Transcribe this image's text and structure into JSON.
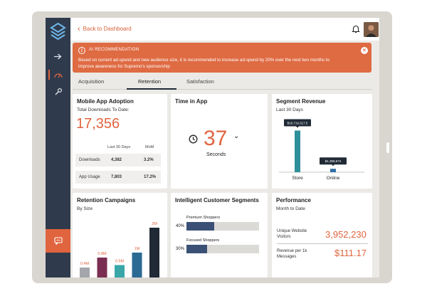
{
  "header": {
    "back_label": "Back to Dashboard",
    "back_chevron": "‹"
  },
  "banner": {
    "title": "AI RECOMMENDATION",
    "text": "Based on current ad-spend and new audience size, it is recommended to increase ad-spend by 20% over the next two months to improve awareness for Supremo's sponsorship",
    "info_glyph": "i",
    "close_glyph": "×"
  },
  "tabs": [
    {
      "label": "Acquisition",
      "active": false
    },
    {
      "label": "Retention",
      "active": true
    },
    {
      "label": "Satisfaction",
      "active": false
    }
  ],
  "adoption": {
    "title": "Mobile App Adoption",
    "subtitle": "Total Downloads To Date:",
    "total": "17,356",
    "columns": [
      "Last 30 Days",
      "MoM"
    ],
    "rows": [
      {
        "label": "Downloads",
        "last30": "4,382",
        "mom": "3.2%"
      },
      {
        "label": "App Usage",
        "last30": "7,803",
        "mom": "17.2%"
      }
    ]
  },
  "time_in_app": {
    "title": "Time in App",
    "value": "37",
    "unit": "Seconds",
    "chevron": "⌄"
  },
  "segment_revenue": {
    "title": "Segment Revenue",
    "subtitle": "Last 30 Days"
  },
  "retention": {
    "title": "Retention Campaigns",
    "subtitle": "By Size"
  },
  "segments": {
    "title": "Intelligent Customer Segments",
    "items": [
      {
        "label": "Premium Shoppers",
        "pct_label": "40%",
        "fill": 0.4
      },
      {
        "label": "Focused Shoppers",
        "pct_label": "30%",
        "fill": 0.3
      }
    ]
  },
  "performance": {
    "title": "Performance",
    "subtitle": "Month to Date",
    "metrics": [
      {
        "label_line1": "Unique Website",
        "label_line2": "Visitors",
        "value": "3,952,230"
      },
      {
        "label_line1": "Revenue per 1k",
        "label_line2": "Messages",
        "value": "$111.17"
      }
    ]
  },
  "colors": {
    "accent": "#e0643e",
    "navy": "#1f2a36",
    "teal": "#2f8f9a",
    "sidebar": "#2f3b4c"
  },
  "chart_data": [
    {
      "type": "bar",
      "categories": [
        "Store",
        "Online"
      ],
      "values": [
        16719317.5,
        1359674
      ],
      "data_labels": [
        "$16,719,317.5",
        "$1,359,674"
      ],
      "ylim": [
        0,
        18000000
      ],
      "colors": [
        "#2f8f9a",
        "#2f6fa6"
      ]
    },
    {
      "type": "bar",
      "categories": [
        "",
        "",
        "",
        "",
        ""
      ],
      "values": [
        0.4,
        0.8,
        0.5,
        1.0,
        2.0
      ],
      "data_labels": [
        "0.4M",
        "0.8M",
        "0.5M",
        "1M",
        "2M"
      ],
      "ylim": [
        0,
        2.2
      ],
      "colors": [
        "#a3a6aa",
        "#7a2e52",
        "#3aa6a8",
        "#2a6a93",
        "#1f2a36"
      ]
    }
  ]
}
